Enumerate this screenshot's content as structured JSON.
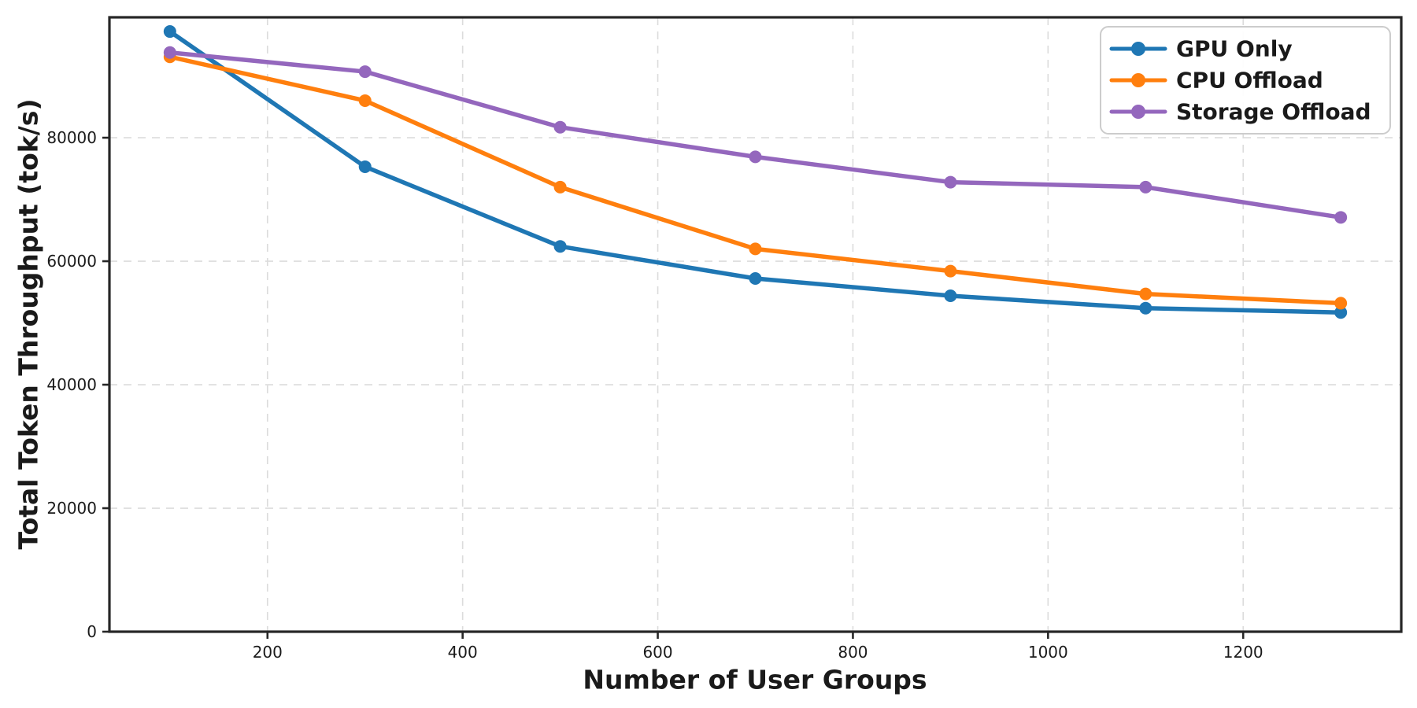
{
  "chart_data": {
    "type": "line",
    "title": "",
    "xlabel": "Number of User Groups",
    "ylabel": "Total Token Throughput (tok/s)",
    "x": [
      100,
      300,
      500,
      700,
      900,
      1100,
      1300
    ],
    "series": [
      {
        "name": "GPU Only",
        "color": "#1f77b4",
        "values": [
          97200,
          75300,
          62400,
          57200,
          54400,
          52400,
          51700
        ]
      },
      {
        "name": "CPU Offload",
        "color": "#ff7f0e",
        "values": [
          93100,
          86000,
          72000,
          62000,
          58400,
          54700,
          53200
        ]
      },
      {
        "name": "Storage Offload",
        "color": "#9467bd",
        "values": [
          93800,
          90700,
          81700,
          76900,
          72800,
          72000,
          67100
        ]
      }
    ],
    "xlim": [
      38,
      1362
    ],
    "ylim": [
      0,
      99500
    ],
    "xticks": [
      200,
      400,
      600,
      800,
      1000,
      1200
    ],
    "yticks": [
      0,
      20000,
      40000,
      60000,
      80000
    ],
    "grid": true,
    "grid_style": "dashed",
    "legend_position": "upper right",
    "marker": "circle"
  },
  "styles": {
    "spine_color": "#262626",
    "tick_color": "#262626",
    "grid_color": "#dcdcdc",
    "legend_border_color": "#cccccc",
    "background_color": "#ffffff"
  }
}
